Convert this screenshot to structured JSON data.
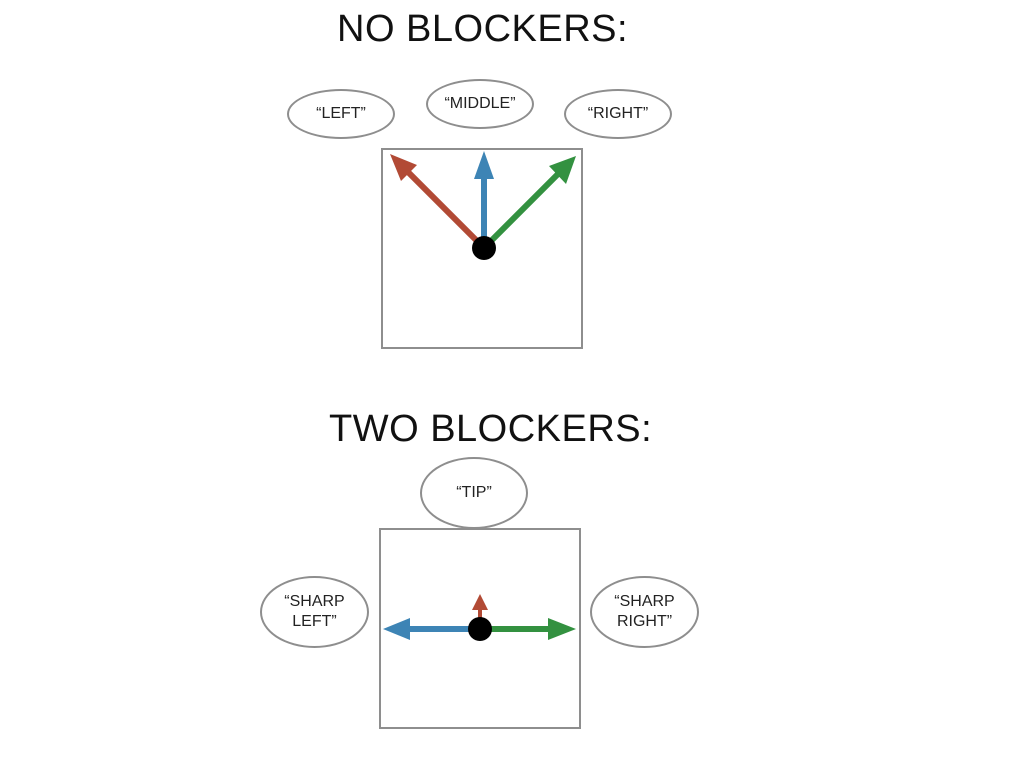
{
  "colors": {
    "left_arrow": "#b24a35",
    "middle_arrow": "#3d84b5",
    "right_arrow": "#339140",
    "dot": "#000000",
    "outline": "#8e8e8e"
  },
  "no_blockers": {
    "title": "NO BLOCKERS:",
    "labels": {
      "left": "“LEFT”",
      "middle": "“MIDDLE”",
      "right": "“RIGHT”"
    }
  },
  "two_blockers": {
    "title": "TWO BLOCKERS:",
    "labels": {
      "tip": "“TIP”",
      "sharp_left_line1": "“SHARP",
      "sharp_left_line2": "LEFT”",
      "sharp_right_line1": "“SHARP",
      "sharp_right_line2": "RIGHT”"
    }
  }
}
